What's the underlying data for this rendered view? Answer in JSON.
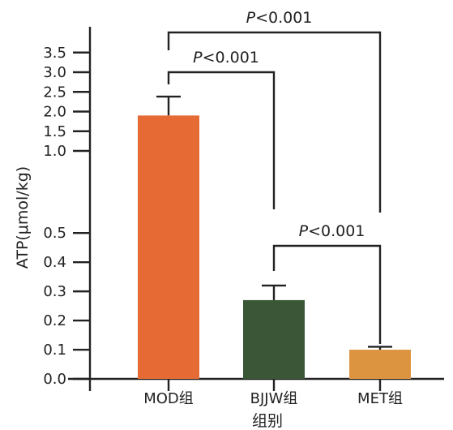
{
  "chart_data": {
    "type": "bar",
    "xlabel": "组别",
    "ylabel": "ATP(μmol/kg)",
    "categories": [
      "MOD组",
      "BJJW组",
      "MET组"
    ],
    "values": [
      1.9,
      0.27,
      0.1
    ],
    "error": [
      0.48,
      0.05,
      0.01
    ],
    "colors": [
      "#E56A33",
      "#3A5636",
      "#DD9440"
    ],
    "y_scale": "broken",
    "y_ticks": [
      "0.0",
      "0.1",
      "0.2",
      "0.3",
      "0.4",
      "0.5",
      "1.0",
      "1.5",
      "2.0",
      "2.5",
      "3.0",
      "3.5"
    ],
    "grid": false,
    "significance": [
      {
        "from": "MOD组",
        "to": "BJJW组",
        "p_prefix": "P",
        "p_rest": "<0.001"
      },
      {
        "from": "MOD组",
        "to": "MET组",
        "p_prefix": "P",
        "p_rest": "<0.001"
      },
      {
        "from": "BJJW组",
        "to": "MET组",
        "p_prefix": "P",
        "p_rest": "<0.001"
      }
    ]
  }
}
